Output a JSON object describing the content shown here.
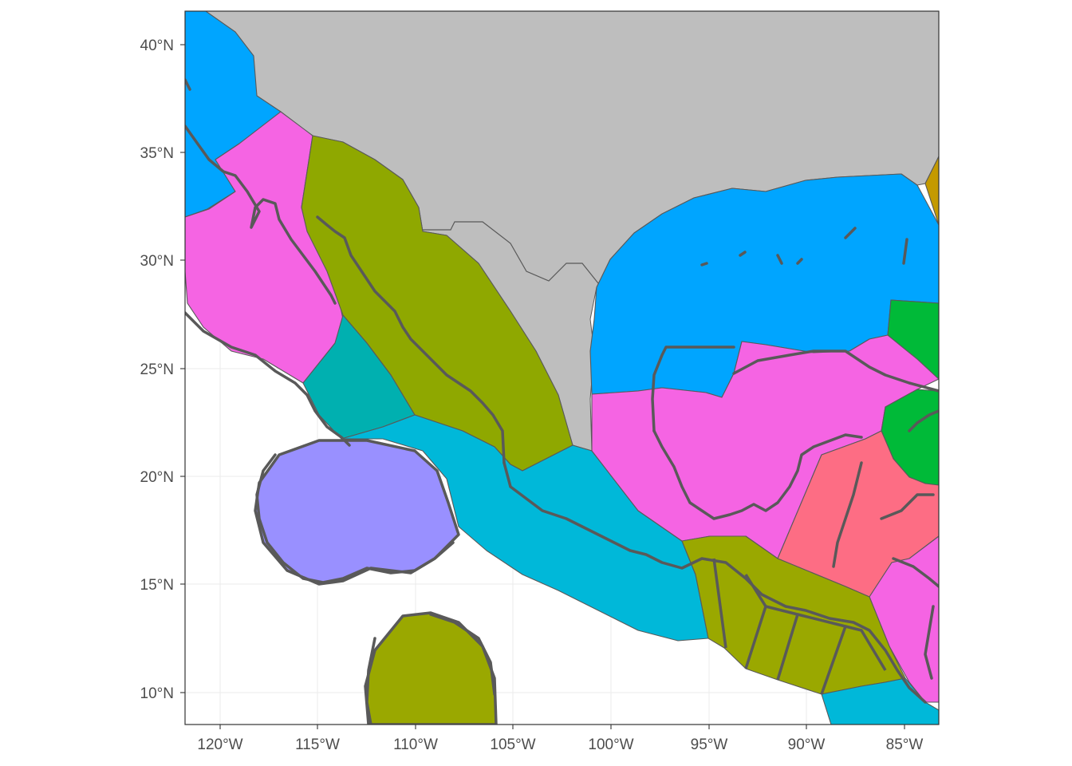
{
  "map": {
    "x_axis": {
      "ticks": [
        "120°W",
        "115°W",
        "110°W",
        "105°W",
        "100°W",
        "95°W",
        "90°W",
        "85°W"
      ],
      "values": [
        -120,
        -115,
        -110,
        -105,
        -100,
        -95,
        -90,
        -85
      ]
    },
    "y_axis": {
      "ticks": [
        "10°N",
        "15°N",
        "20°N",
        "25°N",
        "30°N",
        "35°N",
        "40°N"
      ],
      "values": [
        10,
        15,
        20,
        25,
        30,
        35,
        40
      ]
    },
    "extent": {
      "lon": [
        -121.8,
        -83.3
      ],
      "lat": [
        8.6,
        41.6
      ]
    },
    "colors": {
      "land": "#bebebe",
      "blue": "#00a5ff",
      "pink": "#f564e3",
      "olive": "#8fa800",
      "teal": "#00b0b0",
      "cyan": "#00b8d9",
      "lavender": "#9990ff",
      "olive2": "#9aa800",
      "red": "#fd6d84",
      "green": "#00ba38",
      "gold": "#c49a00",
      "outline": "#595959"
    }
  }
}
